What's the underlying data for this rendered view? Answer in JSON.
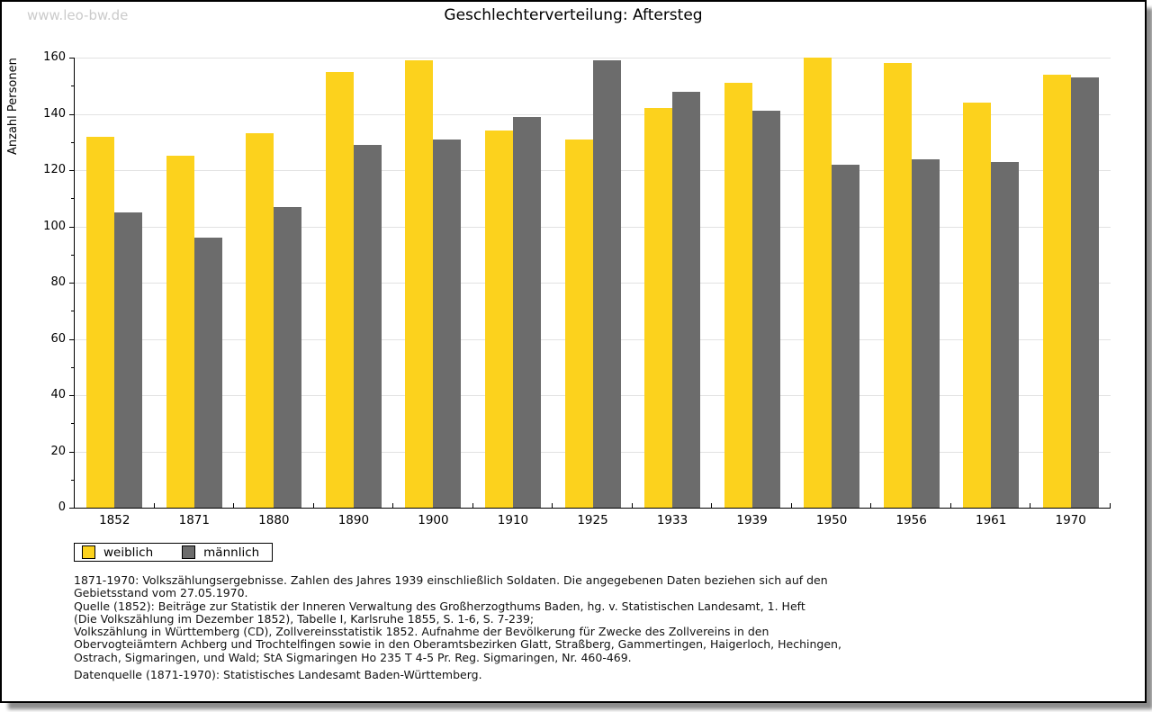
{
  "watermark": "www.leo-bw.de",
  "title": "Geschlechterverteilung: Aftersteg",
  "chart_data": {
    "type": "bar",
    "title": "Geschlechterverteilung: Aftersteg",
    "xlabel": "",
    "ylabel": "Anzahl Personen",
    "ylim": [
      0,
      160
    ],
    "ytick_step": 20,
    "y_minor_step": 10,
    "grid": true,
    "legend_position": "bottom-left",
    "categories": [
      "1852",
      "1871",
      "1880",
      "1890",
      "1900",
      "1910",
      "1925",
      "1933",
      "1939",
      "1950",
      "1956",
      "1961",
      "1970"
    ],
    "series": [
      {
        "name": "weiblich",
        "color": "#FCD21D",
        "values": [
          132,
          125,
          133,
          155,
          159,
          134,
          131,
          142,
          151,
          160,
          158,
          144,
          154
        ]
      },
      {
        "name": "männlich",
        "color": "#6C6C6C",
        "values": [
          105,
          96,
          107,
          129,
          131,
          139,
          159,
          148,
          141,
          122,
          124,
          123,
          153
        ]
      }
    ]
  },
  "legend": {
    "items": [
      {
        "label": "weiblich",
        "color": "#FCD21D"
      },
      {
        "label": "männlich",
        "color": "#6C6C6C"
      }
    ]
  },
  "colors": {
    "gridline": "#e2e2e2",
    "axis": "#000000",
    "watermark": "#cbcbcb"
  },
  "footnotes": [
    "1871-1970: Volkszählungsergebnisse. Zahlen des Jahres 1939 einschließlich Soldaten. Die angegebenen Daten beziehen sich auf den",
    "Gebietsstand vom 27.05.1970.",
    "Quelle (1852): Beiträge zur Statistik der Inneren Verwaltung des Großherzogthums Baden, hg. v. Statistischen Landesamt, 1. Heft",
    "(Die Volkszählung im Dezember 1852), Tabelle I, Karlsruhe 1855, S. 1-6, S. 7-239;",
    "Volkszählung in Württemberg (CD), Zollvereinsstatistik 1852. Aufnahme der Bevölkerung für Zwecke des Zollvereins in den",
    "Obervogteiämtern Achberg und Trochtelfingen sowie in den Oberamtsbezirken Glatt, Straßberg, Gammertingen, Haigerloch, Hechingen,",
    "Ostrach, Sigmaringen, und Wald; StA Sigmaringen Ho 235 T 4-5 Pr. Reg. Sigmaringen, Nr. 460-469."
  ],
  "datasource": "Datenquelle (1871-1970): Statistisches Landesamt Baden-Württemberg."
}
